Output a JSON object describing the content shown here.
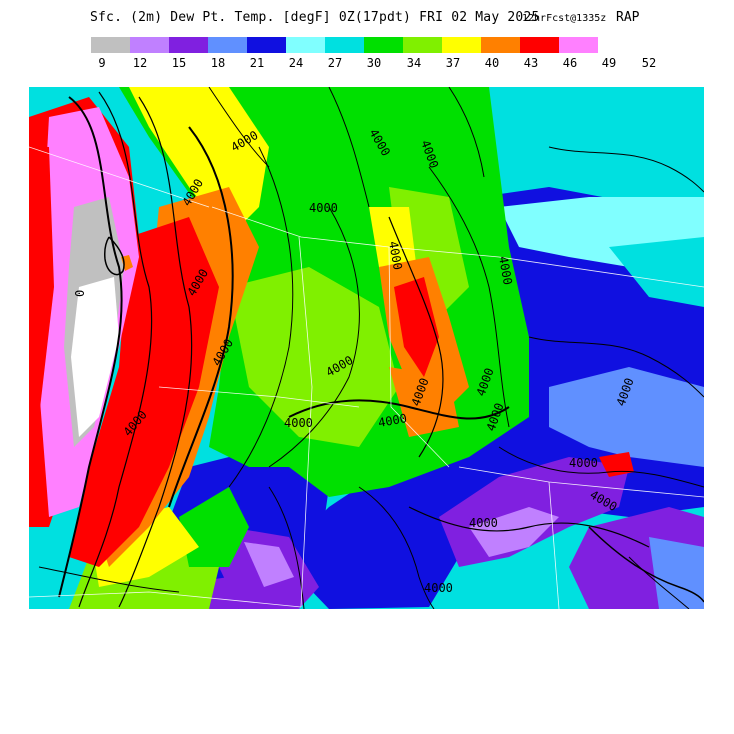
{
  "header": {
    "title": "Sfc. (2m) Dew Pt. Temp. [degF] 0Z(17pdt) FRI 02 May 2025",
    "forecast": "12hrFcst@1335z",
    "model": "RAP"
  },
  "legend": {
    "colors": [
      "#c0c0c0",
      "#c080ff",
      "#8020e0",
      "#6090ff",
      "#1010e0",
      "#80ffff",
      "#00e0e0",
      "#00e000",
      "#80f000",
      "#ffff00",
      "#ff8000",
      "#ff0000",
      "#ff80ff"
    ],
    "ticks": [
      "9",
      "12",
      "15",
      "18",
      "21",
      "24",
      "27",
      "30",
      "34",
      "37",
      "40",
      "43",
      "46",
      "49",
      "52"
    ]
  },
  "map": {
    "contour_labels": [
      "4000",
      "4000",
      "4000",
      "4000",
      "4000",
      "4000",
      "4000",
      "4000",
      "4000",
      "4000",
      "4000",
      "4000",
      "4000",
      "4000",
      "4000",
      "4000",
      "4000",
      "4000",
      "4000",
      "4000",
      "4000",
      "0"
    ]
  }
}
